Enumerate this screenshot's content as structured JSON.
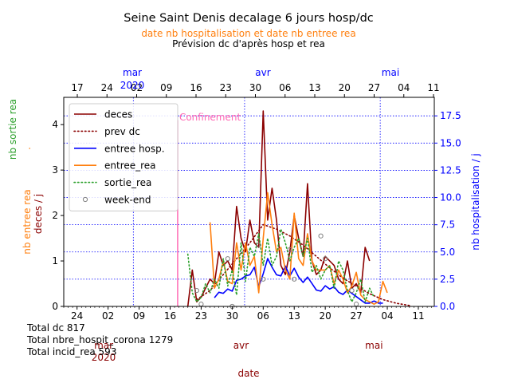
{
  "chart_data": {
    "type": "line",
    "title": "Seine Saint Denis decalage 6 jours hosp/dc",
    "subtitle_orange": "date nb hospitalisation et date nb entree rea",
    "subtitle_black": "Prévision dc d'après hosp et rea",
    "xlabel": "date",
    "ylabel_left_parts": [
      {
        "text": "deces / j",
        "color": "#8b0000"
      },
      {
        "text": "nb entree rea",
        "color": "#ff7f0e"
      },
      {
        "text": ".",
        "color": "#ff7f0e"
      },
      {
        "text": "nb sortie rea",
        "color": "#2ca02c"
      }
    ],
    "ylabel_right": "nb hospitalisation / j",
    "x_range_days_since_mar1": [
      -8,
      48
    ],
    "ylim_left": [
      0,
      4.6
    ],
    "ylim_right": [
      0,
      19.2
    ],
    "yticks_left": [
      "0",
      "1",
      "2",
      "3",
      "4"
    ],
    "yticks_right": [
      "0.0",
      "2.5",
      "5.0",
      "7.5",
      "10.0",
      "12.5",
      "15.0",
      "17.5"
    ],
    "bottom_ticks": [
      {
        "day": -6,
        "label": "24"
      },
      {
        "day": 1,
        "label": "02"
      },
      {
        "day": 8,
        "label": "09"
      },
      {
        "day": 15,
        "label": "16"
      },
      {
        "day": 22,
        "label": "23"
      },
      {
        "day": 29,
        "label": "30"
      },
      {
        "day": 36,
        "label": "06"
      },
      {
        "day": 43,
        "label": "13"
      },
      {
        "day": 50,
        "label": "20"
      },
      {
        "day": 57,
        "label": "27"
      },
      {
        "day": 64,
        "label": "04"
      },
      {
        "day": 71,
        "label": "11"
      }
    ],
    "bottom_month_labels": [
      {
        "day": 0,
        "label": "mar",
        "sub": "2020",
        "color": "#8b0000"
      },
      {
        "day": 31,
        "label": "avr",
        "sub": "",
        "color": "#8b0000"
      },
      {
        "day": 61,
        "label": "mai",
        "sub": "",
        "color": "#8b0000"
      }
    ],
    "top_ticks": [
      {
        "day": -12,
        "label": "17"
      },
      {
        "day": -5,
        "label": "24"
      },
      {
        "day": 2,
        "label": "02"
      },
      {
        "day": 9,
        "label": "09"
      },
      {
        "day": 16,
        "label": "16"
      },
      {
        "day": 23,
        "label": "23"
      },
      {
        "day": 30,
        "label": "30"
      },
      {
        "day": 37,
        "label": "06"
      },
      {
        "day": 44,
        "label": "13"
      },
      {
        "day": 51,
        "label": "20"
      },
      {
        "day": 58,
        "label": "27"
      },
      {
        "day": 65,
        "label": "04"
      },
      {
        "day": 72,
        "label": "11"
      }
    ],
    "top_month_labels": [
      {
        "day": 0,
        "label": "mar",
        "sub": "2020",
        "color": "#0000ff"
      },
      {
        "day": 31,
        "label": "avr",
        "sub": "",
        "color": "#0000ff"
      },
      {
        "day": 61,
        "label": "mai",
        "sub": "",
        "color": "#0000ff"
      }
    ],
    "confinement": {
      "day": 16.7,
      "label": "Confinement",
      "color": "#ff69b4"
    },
    "legend": [
      {
        "label": "deces",
        "color": "#8b0000",
        "style": "solid"
      },
      {
        "label": "prev dc",
        "color": "#8b0000",
        "style": "dotted"
      },
      {
        "label": "entree hosp.",
        "color": "#0000ff",
        "style": "solid"
      },
      {
        "label": "entree_rea",
        "color": "#ff7f0e",
        "style": "solid"
      },
      {
        "label": "sortie_rea",
        "color": "#2ca02c",
        "style": "dotted"
      },
      {
        "label": "week-end",
        "color": "#808080",
        "style": "marker"
      }
    ],
    "legend_position": "upper-left",
    "grid": true,
    "series": [
      {
        "name": "deces",
        "axis": "left",
        "color": "#8b0000",
        "style": "solid",
        "x": [
          19,
          20,
          21,
          22,
          23,
          24,
          25,
          26,
          27,
          28,
          29,
          30,
          31,
          32,
          33,
          34,
          35,
          36,
          37,
          38,
          39,
          40,
          41,
          42,
          43,
          44,
          45,
          46,
          47,
          48,
          49,
          50,
          51,
          52,
          53,
          54,
          55,
          56,
          57,
          58,
          59,
          60
        ],
        "y": [
          0.0,
          0.8,
          0.1,
          0.2,
          0.4,
          0.6,
          0.5,
          1.2,
          0.9,
          1.0,
          0.8,
          2.2,
          1.5,
          1.2,
          1.9,
          1.4,
          1.3,
          4.3,
          1.9,
          2.6,
          1.9,
          0.9,
          0.7,
          1.2,
          2.0,
          1.5,
          1.1,
          2.7,
          1.0,
          0.7,
          0.8,
          1.1,
          1.0,
          0.9,
          0.6,
          0.5,
          1.0,
          0.4,
          0.5,
          0.3,
          1.3,
          1.0
        ]
      },
      {
        "name": "prev dc",
        "axis": "left",
        "color": "#8b0000",
        "style": "dotted",
        "x": [
          21,
          24,
          27,
          30,
          33,
          36,
          39,
          42,
          45,
          48,
          51,
          54,
          57,
          60,
          63,
          66,
          69
        ],
        "y": [
          0.15,
          0.35,
          0.7,
          1.05,
          1.4,
          1.8,
          1.7,
          1.55,
          1.35,
          1.1,
          0.85,
          0.62,
          0.45,
          0.28,
          0.15,
          0.07,
          0.02
        ]
      },
      {
        "name": "entree hosp.",
        "axis": "right",
        "color": "#0000ff",
        "style": "solid",
        "x": [
          25,
          26,
          27,
          28,
          29,
          30,
          31,
          32,
          33,
          34,
          35,
          36,
          37,
          38,
          39,
          40,
          41,
          42,
          43,
          44,
          45,
          46,
          47,
          48,
          49,
          50,
          51,
          52,
          53,
          54,
          55,
          56,
          57,
          58,
          59,
          60,
          61,
          62,
          63
        ],
        "y": [
          0.8,
          1.3,
          1.2,
          1.6,
          1.4,
          2.4,
          2.5,
          2.8,
          2.9,
          3.6,
          1.8,
          3.0,
          4.4,
          3.6,
          2.9,
          2.8,
          3.7,
          2.8,
          3.5,
          2.7,
          2.2,
          2.7,
          2.1,
          1.5,
          1.4,
          1.9,
          1.6,
          1.8,
          1.3,
          1.1,
          1.5,
          1.2,
          0.9,
          0.6,
          0.3,
          0.3,
          0.5,
          0.3,
          0.3
        ]
      },
      {
        "name": "entree_rea",
        "axis": "left",
        "color": "#ff7f0e",
        "style": "solid",
        "x": [
          24,
          25,
          26,
          27,
          28,
          29,
          30,
          31,
          32,
          33,
          34,
          35,
          36,
          37,
          38,
          39,
          40,
          41,
          42,
          43,
          44,
          45,
          46,
          47,
          48,
          49,
          50,
          51,
          52,
          53,
          54,
          55,
          56,
          57,
          58,
          59,
          60,
          61,
          62,
          63,
          64
        ],
        "y": [
          1.85,
          0.4,
          0.6,
          1.0,
          0.55,
          0.5,
          1.4,
          0.8,
          1.4,
          0.9,
          1.1,
          0.3,
          1.5,
          2.5,
          1.8,
          1.2,
          1.3,
          0.8,
          0.6,
          2.05,
          1.05,
          0.9,
          1.6,
          1.0,
          0.8,
          0.8,
          0.8,
          0.9,
          0.5,
          0.8,
          0.6,
          0.3,
          0.45,
          0.75,
          0.25,
          0.15,
          0.1,
          0.05,
          0.1,
          0.55,
          0.3
        ]
      },
      {
        "name": "sortie_rea",
        "axis": "left",
        "color": "#2ca02c",
        "style": "dotted",
        "x": [
          19,
          20,
          21,
          22,
          23,
          24,
          25,
          26,
          27,
          28,
          29,
          30,
          31,
          32,
          33,
          34,
          35,
          36,
          37,
          38,
          39,
          40,
          41,
          42,
          43,
          44,
          45,
          46,
          47,
          48,
          49,
          50,
          51,
          52,
          53,
          54,
          55,
          56,
          57,
          58,
          59,
          60,
          61
        ],
        "y": [
          1.15,
          0.3,
          0.1,
          0.2,
          0.5,
          0.3,
          0.6,
          0.4,
          1.05,
          0.45,
          0.8,
          0.25,
          1.4,
          0.55,
          1.3,
          1.1,
          1.6,
          0.9,
          1.5,
          0.9,
          1.1,
          1.7,
          1.4,
          1.0,
          1.3,
          1.5,
          1.1,
          1.5,
          0.75,
          0.9,
          0.6,
          0.8,
          0.9,
          0.4,
          1.0,
          0.8,
          0.35,
          0.1,
          0.3,
          0.6,
          0.1,
          0.4,
          0.2
        ]
      },
      {
        "name": "week-end",
        "axis": "left",
        "color": "#808080",
        "style": "marker",
        "x": [
          21,
          22,
          28,
          29,
          35,
          36,
          42,
          43,
          49,
          50,
          56,
          57
        ],
        "y": [
          0.35,
          0.05,
          1.05,
          0.0,
          1.35,
          0.6,
          1.25,
          0.6,
          1.55,
          1.05,
          0.35,
          0.05
        ]
      }
    ],
    "annotations": [
      "Total dc 817",
      "Total nbre_hospit_corona 1279",
      "Total incid_rea 593"
    ]
  }
}
